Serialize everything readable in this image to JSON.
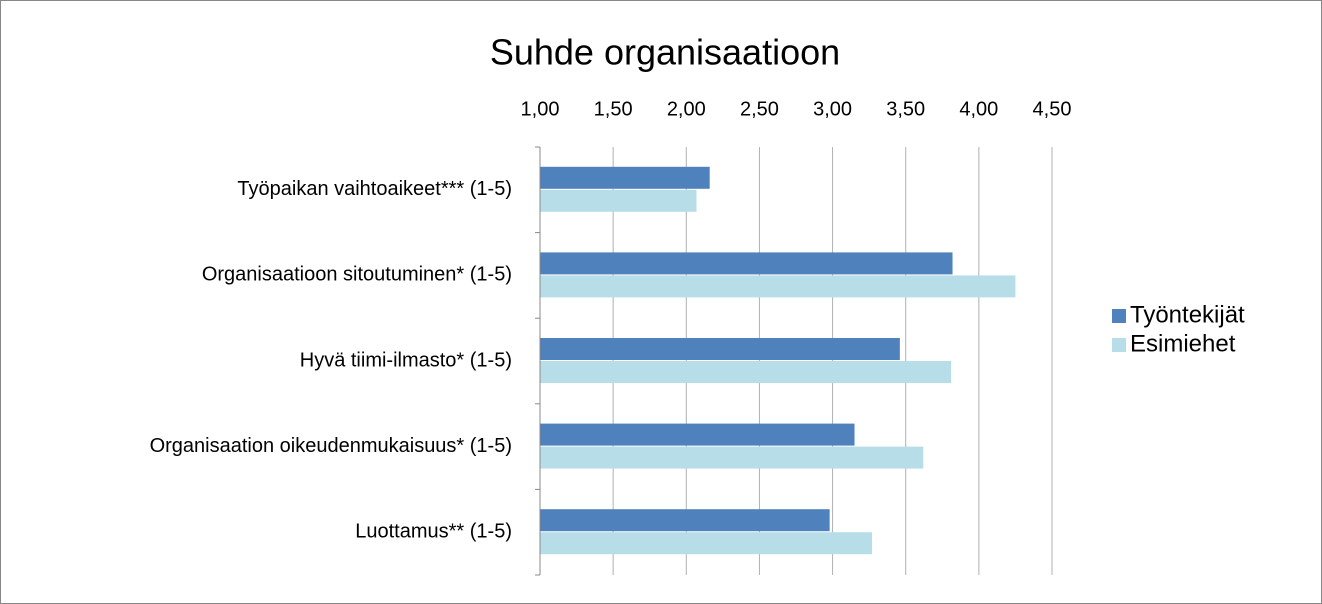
{
  "chart_data": {
    "type": "barh",
    "title": "Suhde organisaatioon",
    "categories": [
      "Työpaikan vaihtoaikeet*** (1-5)",
      "Organisaatioon sitoutuminen* (1-5)",
      "Hyvä tiimi-ilmasto* (1-5)",
      "Organisaation oikeudenmukaisuus* (1-5)",
      "Luottamus** (1-5)"
    ],
    "series": [
      {
        "name": "Työntekijät",
        "color": "#4f81bd",
        "values": [
          2.16,
          3.82,
          3.46,
          3.15,
          2.98
        ]
      },
      {
        "name": "Esimiehet",
        "color": "#b7dee8",
        "values": [
          2.07,
          4.25,
          3.81,
          3.62,
          3.27
        ]
      }
    ],
    "xlim": [
      1,
      4.5
    ],
    "xticks": [
      {
        "value": 1,
        "label": "1,00"
      },
      {
        "value": 1.5,
        "label": "1,50"
      },
      {
        "value": 2,
        "label": "2,00"
      },
      {
        "value": 2.5,
        "label": "2,50"
      },
      {
        "value": 3,
        "label": "3,00"
      },
      {
        "value": 3.5,
        "label": "3,50"
      },
      {
        "value": 4,
        "label": "4,00"
      },
      {
        "value": 4.5,
        "label": "4,50"
      }
    ],
    "grid": true,
    "legend": "right"
  }
}
